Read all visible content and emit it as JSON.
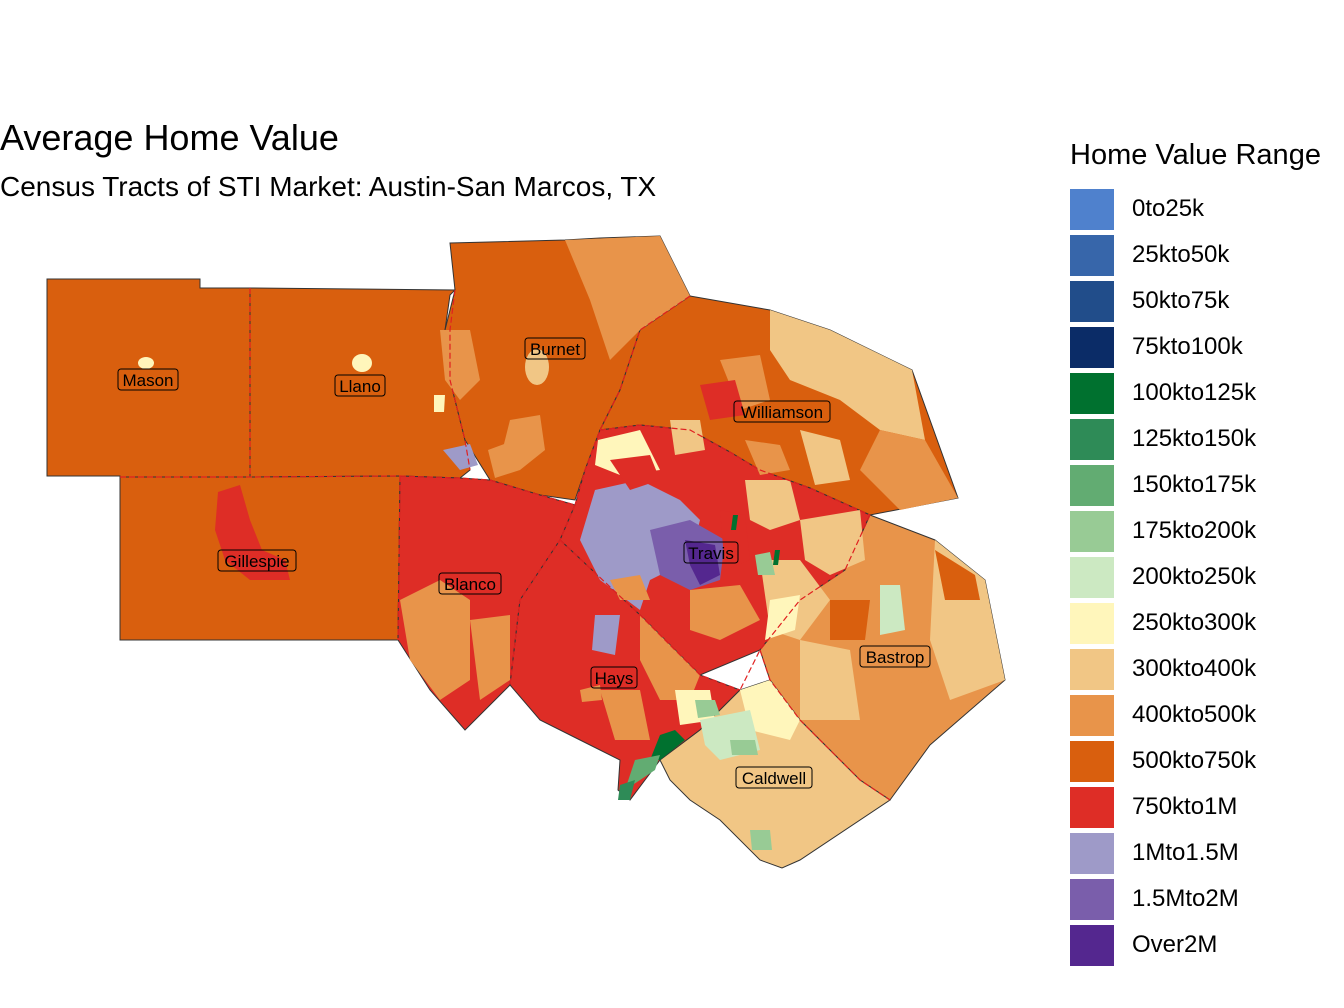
{
  "title": "Average Home Value",
  "subtitle": "Census Tracts of STI Market: Austin-San Marcos, TX",
  "legend": {
    "title": "Home Value Range",
    "items": [
      {
        "label": "0to25k",
        "color": "#4F81CD"
      },
      {
        "label": "25kto50k",
        "color": "#3766AA"
      },
      {
        "label": "50kto75k",
        "color": "#214D8A"
      },
      {
        "label": "75kto100k",
        "color": "#0B2C67"
      },
      {
        "label": "100kto125k",
        "color": "#00712F"
      },
      {
        "label": "125kto150k",
        "color": "#2E8B57"
      },
      {
        "label": "150kto175k",
        "color": "#62AC72"
      },
      {
        "label": "175kto200k",
        "color": "#98CB95"
      },
      {
        "label": "200kto250k",
        "color": "#CCE9C2"
      },
      {
        "label": "250kto300k",
        "color": "#FFF6BB"
      },
      {
        "label": "300kto400k",
        "color": "#F1C685"
      },
      {
        "label": "400kto500k",
        "color": "#E8944A"
      },
      {
        "label": "500kto750k",
        "color": "#D95F0E"
      },
      {
        "label": "750kto1M",
        "color": "#DE2D26"
      },
      {
        "label": "1Mto1.5M",
        "color": "#9E9AC8"
      },
      {
        "label": "1.5Mto2M",
        "color": "#7A5EAB"
      },
      {
        "label": "Over2M",
        "color": "#54278F"
      }
    ]
  },
  "counties": {
    "mason": "Mason",
    "llano": "Llano",
    "burnet": "Burnet",
    "williamson": "Williamson",
    "gillespie": "Gillespie",
    "blanco": "Blanco",
    "travis": "Travis",
    "hays": "Hays",
    "bastrop": "Bastrop",
    "caldwell": "Caldwell"
  }
}
